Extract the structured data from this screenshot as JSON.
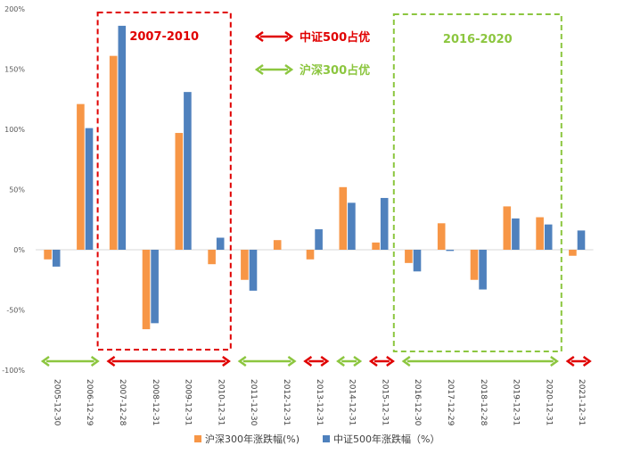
{
  "chart_data": {
    "type": "bar",
    "categories": [
      "2005-12-30",
      "2006-12-29",
      "2007-12-28",
      "2008-12-31",
      "2009-12-31",
      "2010-12-31",
      "2011-12-30",
      "2012-12-31",
      "2013-12-31",
      "2014-12-31",
      "2015-12-31",
      "2016-12-30",
      "2017-12-29",
      "2018-12-28",
      "2019-12-31",
      "2020-12-31",
      "2021-12-31"
    ],
    "series": [
      {
        "name": "沪深300年涨跌幅(%)",
        "color": "#F79646",
        "values": [
          -8,
          121,
          161,
          -66,
          97,
          -12,
          -25,
          8,
          -8,
          52,
          6,
          -11,
          22,
          -25,
          36,
          27,
          -5
        ]
      },
      {
        "name": "中证500年涨跌幅（%）",
        "color": "#4F81BD",
        "values": [
          -14,
          101,
          186,
          -61,
          131,
          10,
          -34,
          0,
          17,
          39,
          43,
          -18,
          -1,
          -33,
          26,
          21,
          16
        ]
      }
    ],
    "ylim": [
      -100,
      200
    ],
    "yticks": [
      -100,
      -50,
      0,
      50,
      100,
      150,
      200
    ],
    "ytick_labels": [
      "-100%",
      "-50%",
      "0%",
      "50%",
      "100%",
      "150%",
      "200%"
    ],
    "grid": false,
    "legend_position": "bottom",
    "annotations": {
      "box1_label": "2007-2010",
      "box2_label": "2016-2020",
      "key_red": "中证500占优",
      "key_green": "沪深300占优",
      "red_color": "#E00000",
      "green_color": "#8CC63F"
    },
    "periods": [
      {
        "from": "2005-12-30",
        "to": "2006-12-29",
        "leader": "green"
      },
      {
        "from": "2007-12-28",
        "to": "2010-12-31",
        "leader": "red"
      },
      {
        "from": "2011-12-30",
        "to": "2012-12-31",
        "leader": "green"
      },
      {
        "from": "2013-12-31",
        "to": "2013-12-31",
        "leader": "red"
      },
      {
        "from": "2014-12-31",
        "to": "2014-12-31",
        "leader": "green"
      },
      {
        "from": "2015-12-31",
        "to": "2015-12-31",
        "leader": "red"
      },
      {
        "from": "2016-12-30",
        "to": "2020-12-31",
        "leader": "green"
      },
      {
        "from": "2021-12-31",
        "to": "2021-12-31",
        "leader": "red"
      }
    ]
  }
}
